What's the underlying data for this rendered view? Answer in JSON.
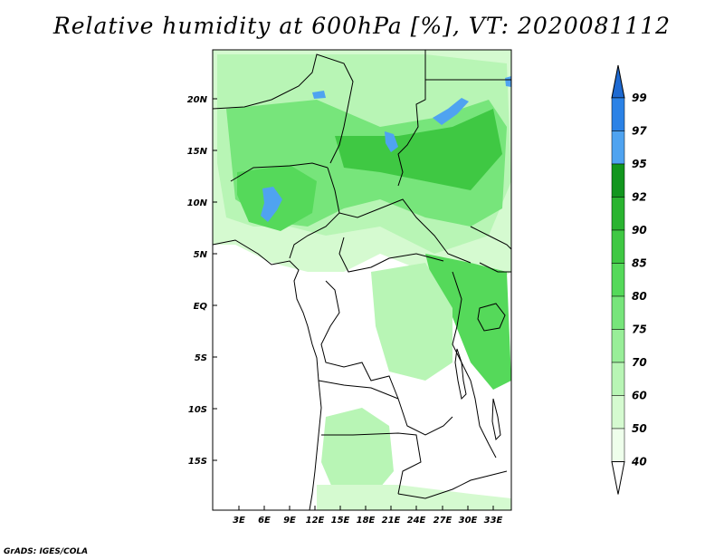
{
  "title": "Relative humidity at 600hPa [%], VT: 2020081112",
  "credit": "GrADS: IGES/COLA",
  "latitude_labels": [
    "20N",
    "15N",
    "10N",
    "5N",
    "EQ",
    "5S",
    "10S",
    "15S"
  ],
  "longitude_labels": [
    "3E",
    "6E",
    "9E",
    "12E",
    "15E",
    "18E",
    "21E",
    "24E",
    "27E",
    "30E",
    "33E"
  ],
  "colorbar": {
    "labels": [
      "99",
      "97",
      "95",
      "92",
      "90",
      "85",
      "80",
      "75",
      "70",
      "60",
      "50",
      "40"
    ],
    "colors": [
      "#1e6ad2",
      "#2b82e6",
      "#4fa3f0",
      "#12961e",
      "#2ab430",
      "#3fc843",
      "#55d95a",
      "#77e57b",
      "#98ee98",
      "#b8f5b5",
      "#d5fad0",
      "#eefeeb"
    ]
  },
  "palette": {
    "rh_40_50": "#eefeeb",
    "rh_50_60": "#d5fad0",
    "rh_60_70": "#b8f5b5",
    "rh_70_75": "#98ee98",
    "rh_75_80": "#77e57b",
    "rh_80_85": "#55d95a",
    "rh_85_90": "#3fc843",
    "rh_over_95": "#4fa3f0"
  }
}
